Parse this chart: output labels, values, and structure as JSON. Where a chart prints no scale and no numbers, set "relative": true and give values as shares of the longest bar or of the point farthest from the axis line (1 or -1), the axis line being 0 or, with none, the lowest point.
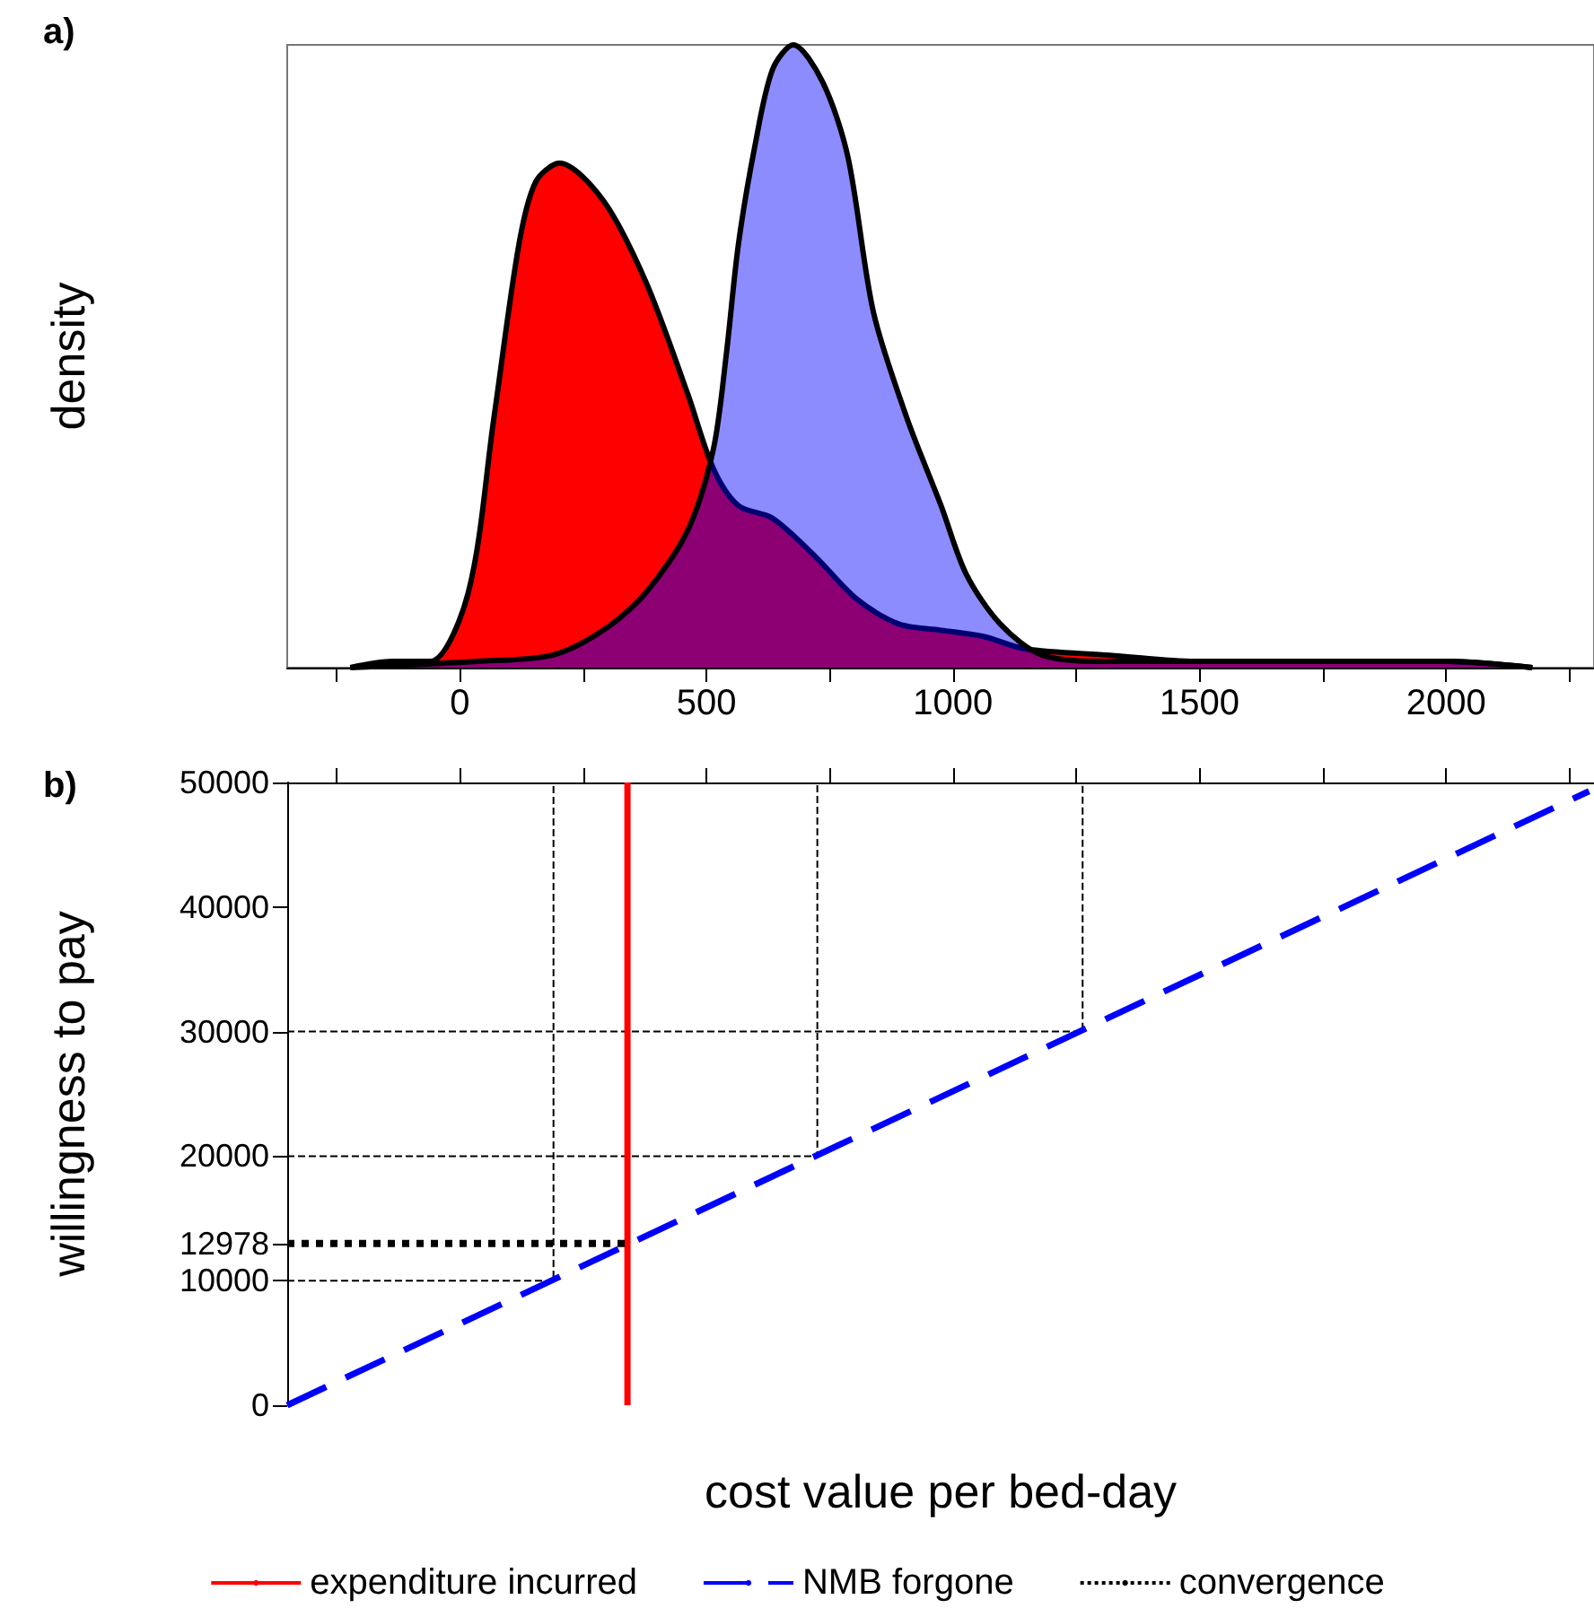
{
  "chart_data": [
    {
      "type": "area",
      "title": "a)",
      "ylabel": "density",
      "relative": true,
      "xlim": [
        -350,
        2300
      ],
      "xticks": [
        {
          "value": -250,
          "label": null
        },
        0,
        {
          "value": 250,
          "label": null
        },
        500,
        {
          "value": 750,
          "label": null
        },
        1000,
        {
          "value": 1250,
          "label": null
        },
        1500,
        {
          "value": 1750,
          "label": null
        },
        2000,
        {
          "value": 2250,
          "label": null
        }
      ],
      "series": [
        {
          "color": "#ff0000",
          "x": [
            -222,
            -137,
            -60,
            17,
            69,
            120,
            154,
            202,
            291,
            377,
            462,
            514,
            565,
            634,
            719,
            805,
            890,
            976,
            1062,
            1147,
            1318,
            1490,
            1661,
            2003,
            2175
          ],
          "values": [
            0,
            0.01,
            0.01,
            0.12,
            0.4,
            0.68,
            0.78,
            0.81,
            0.75,
            0.62,
            0.44,
            0.32,
            0.26,
            0.24,
            0.18,
            0.11,
            0.07,
            0.06,
            0.05,
            0.03,
            0.02,
            0.01,
            0.01,
            0.01,
            0
          ]
        },
        {
          "color": "#0000ff",
          "x": [
            -222,
            34,
            188,
            291,
            377,
            462,
            514,
            540,
            565,
            599,
            634,
            676,
            736,
            787,
            839,
            907,
            976,
            1027,
            1096,
            1181,
            1318,
            1661,
            2003,
            2175
          ],
          "values": [
            0,
            0.01,
            0.02,
            0.06,
            0.12,
            0.22,
            0.35,
            0.5,
            0.68,
            0.84,
            0.96,
            1,
            0.94,
            0.82,
            0.57,
            0.4,
            0.26,
            0.15,
            0.07,
            0.02,
            0.01,
            0.01,
            0.01,
            0
          ]
        }
      ]
    },
    {
      "type": "line",
      "title": "b)",
      "xlabel": "cost value per bed-day",
      "ylabel": "willingness to pay",
      "xlim": [
        -350,
        2300
      ],
      "xticks": [
        {
          "value": -250,
          "label": null
        },
        0,
        {
          "value": 250,
          "label": null
        },
        500,
        {
          "value": 750,
          "label": null
        },
        1000,
        {
          "value": 1250,
          "label": null
        },
        1500,
        {
          "value": 1750,
          "label": null
        },
        2000,
        {
          "value": 2250,
          "label": null
        }
      ],
      "ylim": [
        0,
        50000
      ],
      "yticks": [
        0,
        10000,
        12978,
        20000,
        30000,
        40000,
        50000
      ],
      "tick_labels": "y",
      "legend": "bottom",
      "series": [
        {
          "name": "expenditure incurred",
          "color": "#ff0000",
          "line_style": "solid",
          "x": [
            340,
            340
          ],
          "values": [
            0,
            50000
          ]
        },
        {
          "name": "NMB forgone",
          "color": "#0000ff",
          "line_style": "dashed",
          "x": [
            -350,
            2290
          ],
          "values": [
            0,
            49300
          ]
        },
        {
          "name": "convergence",
          "color": "#000000",
          "line_style": "dotted",
          "x": [
            -350,
            340
          ],
          "values": [
            12978,
            12978
          ]
        },
        {
          "color": "#000000",
          "line_style": "dashed",
          "x": [
            -350,
            190,
            190
          ],
          "values": [
            10000,
            10000,
            50000
          ]
        },
        {
          "color": "#000000",
          "line_style": "dashed",
          "x": [
            -350,
            725,
            725
          ],
          "values": [
            20000,
            20000,
            50000
          ]
        },
        {
          "color": "#000000",
          "line_style": "dashed",
          "x": [
            -350,
            1263,
            1263
          ],
          "values": [
            30000,
            30000,
            50000
          ]
        }
      ]
    }
  ]
}
